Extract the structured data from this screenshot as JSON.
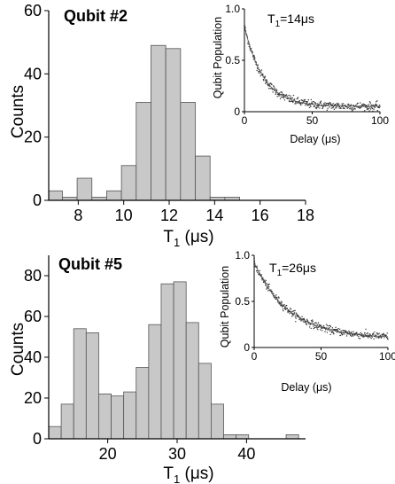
{
  "chart_data": [
    {
      "type": "bar",
      "title": "Qubit #2",
      "xlabel": "T",
      "xlabel_sub": "1",
      "xlabel_unit": "(μs)",
      "ylabel": "Counts",
      "xlim": [
        6.7,
        18
      ],
      "ylim": [
        0,
        60
      ],
      "xticks": [
        8,
        10,
        12,
        14,
        16,
        18
      ],
      "yticks": [
        0,
        20,
        40,
        60
      ],
      "bin_edges": [
        6.7,
        7.3,
        7.95,
        8.6,
        9.25,
        9.9,
        10.55,
        11.2,
        11.85,
        12.5,
        13.15,
        13.8,
        14.45,
        15.1
      ],
      "values": [
        3,
        1,
        7,
        1,
        3,
        11,
        31,
        49,
        48,
        31,
        14,
        1,
        1
      ],
      "bar_color": "#c8c8c8",
      "inset": {
        "type": "scatter",
        "xlabel": "Delay (μs)",
        "ylabel": "Qubit Population",
        "xlim": [
          0,
          100
        ],
        "ylim": [
          0,
          1.0
        ],
        "xticks": [
          0,
          50,
          100
        ],
        "yticks": [
          0,
          0.5,
          1.0
        ],
        "ytick_labels": [
          "0",
          "0.5",
          "1.0"
        ],
        "annotation_T": "T",
        "annotation_sub": "1",
        "annotation_value": "=14μs",
        "fit": {
          "amplitude": 0.78,
          "T1": 14,
          "offset": 0.05
        }
      }
    },
    {
      "type": "bar",
      "title": "Qubit #5",
      "xlabel": "T",
      "xlabel_sub": "1",
      "xlabel_unit": "(μs)",
      "ylabel": "Counts",
      "xlim": [
        11.5,
        48.5
      ],
      "ylim": [
        0,
        90
      ],
      "xticks": [
        20,
        30,
        40
      ],
      "yticks": [
        0,
        20,
        40,
        60,
        80
      ],
      "bin_edges": [
        11.5,
        13.3,
        15.1,
        16.9,
        18.7,
        20.5,
        22.3,
        24.1,
        25.9,
        27.7,
        29.5,
        31.3,
        33.1,
        34.9,
        36.7,
        38.5,
        40.3,
        42.1,
        43.9,
        45.7,
        47.5
      ],
      "values": [
        6,
        17,
        54,
        52,
        22,
        21,
        23,
        35,
        56,
        76,
        77,
        57,
        37,
        17,
        2,
        2,
        0,
        0,
        0,
        2
      ],
      "bar_color": "#c8c8c8",
      "inset": {
        "type": "scatter",
        "xlabel": "Delay (μs)",
        "ylabel": "Qubit Population",
        "xlim": [
          0,
          100
        ],
        "ylim": [
          0,
          1.0
        ],
        "xticks": [
          0,
          50,
          100
        ],
        "yticks": [
          0,
          0.5,
          1.0
        ],
        "ytick_labels": [
          "0",
          "0.5",
          "1.0"
        ],
        "annotation_T": "T",
        "annotation_sub": "1",
        "annotation_value": "=26μs",
        "fit": {
          "amplitude": 0.82,
          "T1": 26,
          "offset": 0.1
        }
      }
    }
  ]
}
